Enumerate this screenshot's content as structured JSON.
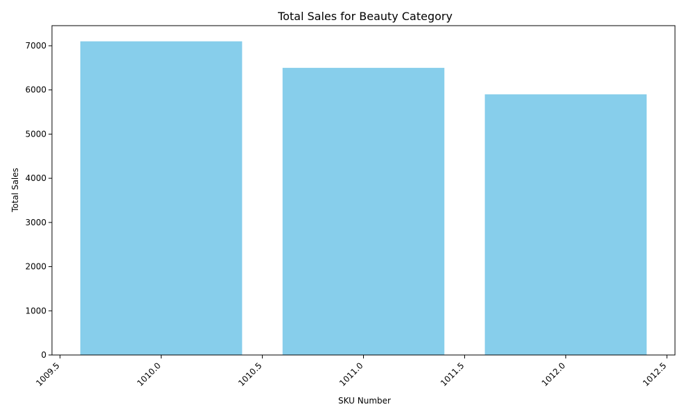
{
  "chart_data": {
    "type": "bar",
    "title": "Total Sales for Beauty Category",
    "xlabel": "SKU Number",
    "ylabel": "Total Sales",
    "x": [
      1010,
      1011,
      1012
    ],
    "values": [
      7100,
      6500,
      5900
    ],
    "bar_width": 0.8,
    "xlim": [
      1009.46,
      1012.54
    ],
    "ylim": [
      0,
      7455
    ],
    "xticks": [
      1009.5,
      1010.0,
      1010.5,
      1011.0,
      1011.5,
      1012.0,
      1012.5
    ],
    "xtick_labels": [
      "1009.5",
      "1010.0",
      "1010.5",
      "1011.0",
      "1011.5",
      "1012.0",
      "1012.5"
    ],
    "yticks": [
      0,
      1000,
      2000,
      3000,
      4000,
      5000,
      6000,
      7000
    ],
    "ytick_labels": [
      "0",
      "1000",
      "2000",
      "3000",
      "4000",
      "5000",
      "6000",
      "7000"
    ],
    "bar_color": "#87CEEB",
    "grid": false,
    "legend": "none"
  }
}
